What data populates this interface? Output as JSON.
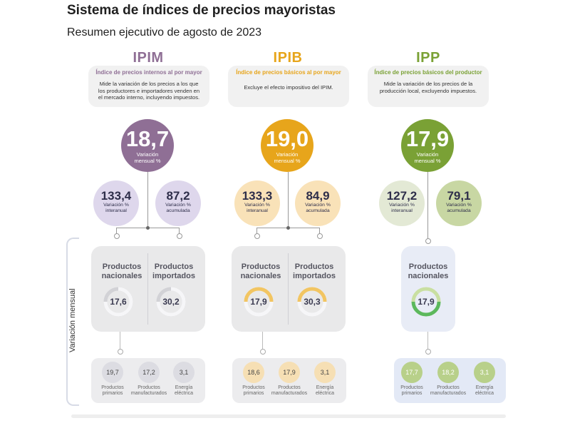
{
  "header": {
    "title": "Sistema de índices de precios mayoristas",
    "subtitle": "Resumen ejecutivo de agosto de 2023"
  },
  "side_label": "Variación mensual",
  "colors": {
    "ipim": "#8f6f95",
    "ipib": "#e7a51b",
    "ipp": "#7aa135",
    "ipim_light": "#ded7ec",
    "ipib_light": "#f9e2b8",
    "ipp_light": "#e3e9d5"
  },
  "indices": [
    {
      "name": "IPIM",
      "full_name": "Índice de precios internos al por mayor",
      "description": "Mide la variación de los precios a los que los productores e importadores venden en el mercado interno, incluyendo impuestos.",
      "monthly_value": "18,7",
      "monthly_label": "Variación mensual %",
      "interanual_value": "133,4",
      "interanual_label": "Variación % interanual",
      "acumulada_value": "87,2",
      "acumulada_label": "Variación % acumulada",
      "products": [
        {
          "label": "Productos nacionales",
          "value": "17,6"
        },
        {
          "label": "Productos importados",
          "value": "30,2"
        }
      ],
      "breakdown": [
        {
          "value": "19,7",
          "label": "Productos primarios"
        },
        {
          "value": "17,2",
          "label": "Productos manufacturados"
        },
        {
          "value": "3,1",
          "label": "Energía eléctrica"
        }
      ]
    },
    {
      "name": "IPIB",
      "full_name": "Índice de precios básicos al por mayor",
      "description": "Excluye el efecto impositivo del IPIM.",
      "monthly_value": "19,0",
      "monthly_label": "Variación mensual %",
      "interanual_value": "133,3",
      "interanual_label": "Variación % interanual",
      "acumulada_value": "84,9",
      "acumulada_label": "Variación % acumulada",
      "products": [
        {
          "label": "Productos nacionales",
          "value": "17,9"
        },
        {
          "label": "Productos importados",
          "value": "30,3"
        }
      ],
      "breakdown": [
        {
          "value": "18,6",
          "label": "Productos primarios"
        },
        {
          "value": "17,9",
          "label": "Productos manufacturados"
        },
        {
          "value": "3,1",
          "label": "Energía eléctrica"
        }
      ]
    },
    {
      "name": "IPP",
      "full_name": "Índice de precios básicos del productor",
      "description": "Mide la variación de los precios de la producción local, excluyendo impuestos.",
      "monthly_value": "17,9",
      "monthly_label": "Variación mensual %",
      "interanual_value": "127,2",
      "interanual_label": "Variación % interanual",
      "acumulada_value": "79,1",
      "acumulada_label": "Variación % acumulada",
      "products": [
        {
          "label": "Productos nacionales",
          "value": "17,9"
        }
      ],
      "breakdown": [
        {
          "value": "17,7",
          "label": "Productos primarios"
        },
        {
          "value": "18,2",
          "label": "Productos manufacturados"
        },
        {
          "value": "3,1",
          "label": "Energía eléctrica"
        }
      ]
    }
  ]
}
